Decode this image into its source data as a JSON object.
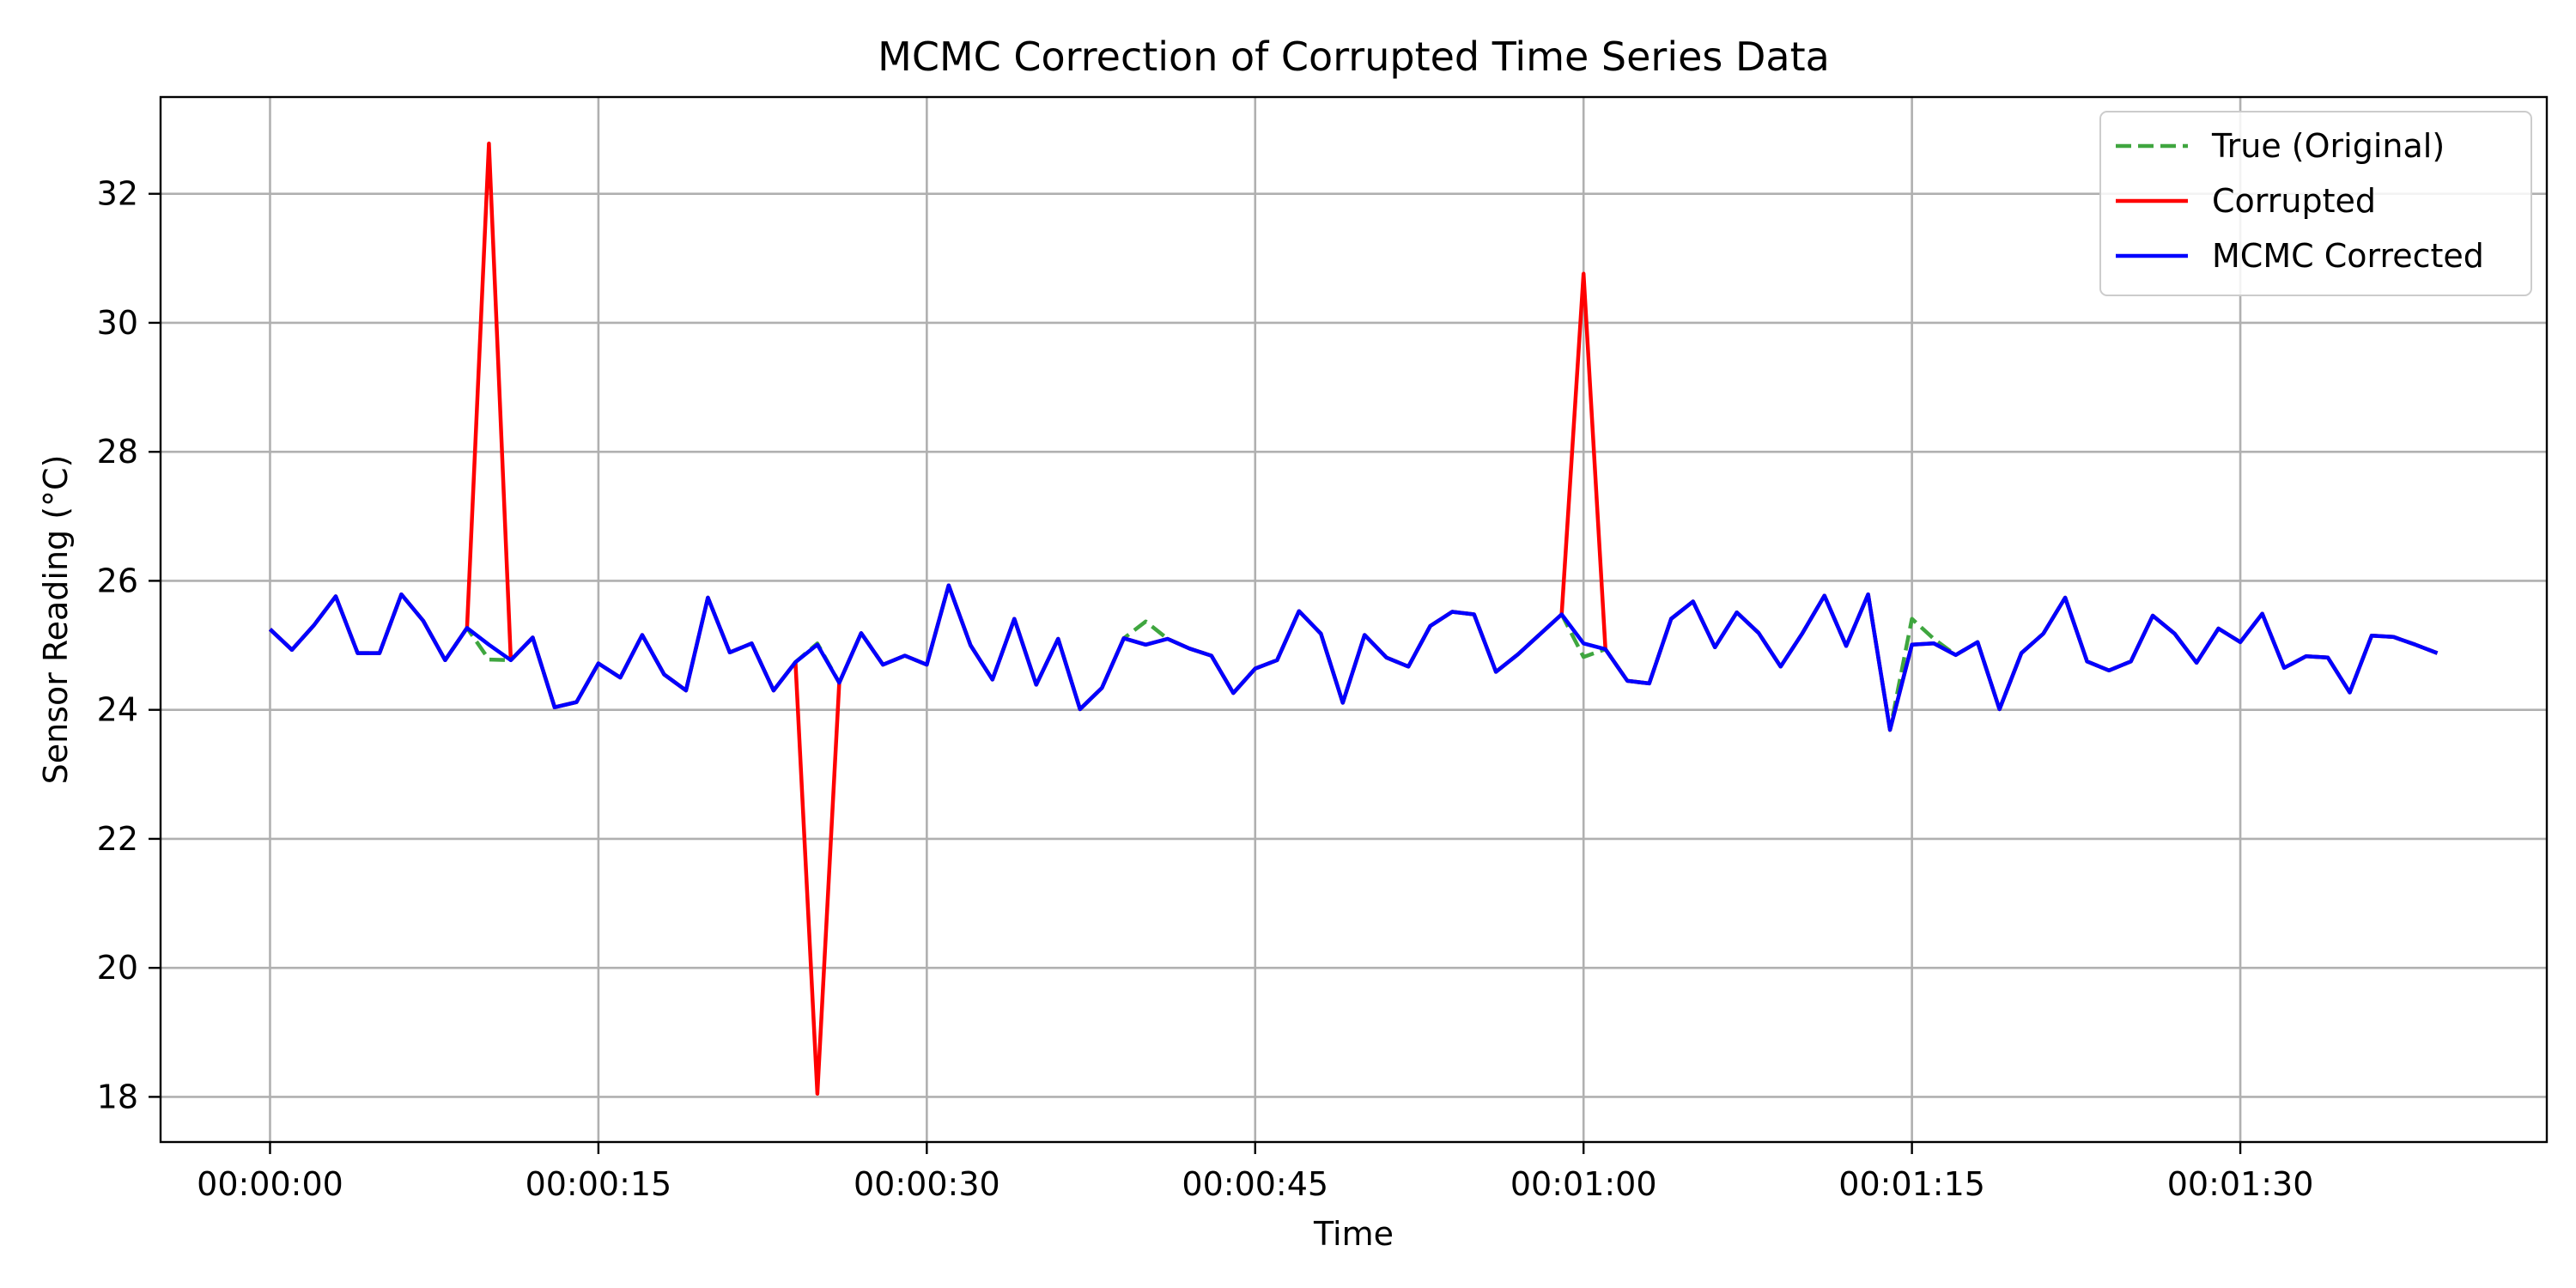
{
  "chart_data": {
    "type": "line",
    "title": "MCMC Correction of Corrupted Time Series Data",
    "xlabel": "Time",
    "ylabel": "Sensor Reading (°C)",
    "x_unit": "seconds",
    "x": [
      0,
      1,
      2,
      3,
      4,
      5,
      6,
      7,
      8,
      9,
      10,
      11,
      12,
      13,
      14,
      15,
      16,
      17,
      18,
      19,
      20,
      21,
      22,
      23,
      24,
      25,
      26,
      27,
      28,
      29,
      30,
      31,
      32,
      33,
      34,
      35,
      36,
      37,
      38,
      39,
      40,
      41,
      42,
      43,
      44,
      45,
      46,
      47,
      48,
      49,
      50,
      51,
      52,
      53,
      54,
      55,
      56,
      57,
      58,
      59,
      60,
      61,
      62,
      63,
      64,
      65,
      66,
      67,
      68,
      69,
      70,
      71,
      72,
      73,
      74,
      75,
      76,
      77,
      78,
      79,
      80,
      81,
      82,
      83,
      84,
      85,
      86,
      87,
      88,
      89,
      90,
      91,
      92,
      93,
      94,
      95,
      96,
      97,
      98,
      99
    ],
    "xticks": [
      0,
      15,
      30,
      45,
      60,
      75,
      90
    ],
    "xtick_labels": [
      "00:00:00",
      "00:00:15",
      "00:00:30",
      "00:00:45",
      "00:01:00",
      "00:01:15",
      "00:01:30"
    ],
    "yticks": [
      18,
      20,
      22,
      24,
      26,
      28,
      30,
      32
    ],
    "ytick_labels": [
      "18",
      "20",
      "22",
      "24",
      "26",
      "28",
      "30",
      "32"
    ],
    "xlim": [
      -5,
      104
    ],
    "ylim": [
      17.3,
      33.5
    ],
    "grid": true,
    "legend_position": "top-right",
    "series": [
      {
        "name": "True (Original)",
        "color": "#3fa63f",
        "style": "dashed",
        "values": [
          25.25,
          24.93,
          25.31,
          25.76,
          24.88,
          24.88,
          25.79,
          25.38,
          24.77,
          25.27,
          24.78,
          24.77,
          25.12,
          24.04,
          24.12,
          24.72,
          24.5,
          25.16,
          24.55,
          24.3,
          25.74,
          24.89,
          25.03,
          24.3,
          24.74,
          25.03,
          24.42,
          25.19,
          24.7,
          24.84,
          24.7,
          25.93,
          25.0,
          24.47,
          25.41,
          24.39,
          25.1,
          24.01,
          24.34,
          25.11,
          25.37,
          25.1,
          24.95,
          24.84,
          24.26,
          24.64,
          24.77,
          25.53,
          25.18,
          24.11,
          25.16,
          24.81,
          24.67,
          25.3,
          25.52,
          25.48,
          24.59,
          24.86,
          25.17,
          25.48,
          24.82,
          24.94,
          24.45,
          24.41,
          25.41,
          25.68,
          24.97,
          25.51,
          25.19,
          24.67,
          25.19,
          25.77,
          24.99,
          25.79,
          23.69,
          25.41,
          25.1,
          24.85,
          25.05,
          24.01,
          24.88,
          25.18,
          25.74,
          24.75,
          24.61,
          24.75,
          25.46,
          25.18,
          24.73,
          25.26,
          25.05,
          25.49,
          24.65,
          24.83,
          24.81,
          24.27,
          25.15,
          25.13,
          25.01,
          24.88
        ]
      },
      {
        "name": "Corrupted",
        "color": "#ff0000",
        "style": "solid",
        "values": [
          25.25,
          24.93,
          25.31,
          25.76,
          24.88,
          24.88,
          25.79,
          25.38,
          24.77,
          25.27,
          32.78,
          24.77,
          25.12,
          24.04,
          24.12,
          24.72,
          24.5,
          25.16,
          24.55,
          24.3,
          25.74,
          24.89,
          25.03,
          24.3,
          24.74,
          18.05,
          24.42,
          25.19,
          24.7,
          24.84,
          24.7,
          25.93,
          25.0,
          24.47,
          25.41,
          24.39,
          25.1,
          24.01,
          24.34,
          25.11,
          25.01,
          25.1,
          24.95,
          24.84,
          24.26,
          24.64,
          24.77,
          25.53,
          25.18,
          24.11,
          25.16,
          24.81,
          24.67,
          25.3,
          25.52,
          25.48,
          24.59,
          24.86,
          25.17,
          25.48,
          30.76,
          24.94,
          24.45,
          24.41,
          25.41,
          25.68,
          24.97,
          25.51,
          25.19,
          24.67,
          25.19,
          25.77,
          24.99,
          25.79,
          23.69,
          25.01,
          25.03,
          24.85,
          25.05,
          24.01,
          24.88,
          25.18,
          25.74,
          24.75,
          24.61,
          24.75,
          25.46,
          25.18,
          24.73,
          25.26,
          25.05,
          25.49,
          24.65,
          24.83,
          24.81,
          24.27,
          25.15,
          25.13,
          25.01,
          24.88
        ]
      },
      {
        "name": "MCMC Corrected",
        "color": "#0000ff",
        "style": "solid",
        "values": [
          25.25,
          24.93,
          25.31,
          25.76,
          24.88,
          24.88,
          25.79,
          25.38,
          24.77,
          25.27,
          25.01,
          24.77,
          25.12,
          24.04,
          24.12,
          24.72,
          24.5,
          25.16,
          24.55,
          24.3,
          25.74,
          24.89,
          25.03,
          24.3,
          24.74,
          25.01,
          24.42,
          25.19,
          24.7,
          24.84,
          24.7,
          25.93,
          25.0,
          24.47,
          25.41,
          24.39,
          25.1,
          24.01,
          24.34,
          25.11,
          25.01,
          25.1,
          24.95,
          24.84,
          24.26,
          24.64,
          24.77,
          25.53,
          25.18,
          24.11,
          25.16,
          24.81,
          24.67,
          25.3,
          25.52,
          25.48,
          24.59,
          24.86,
          25.17,
          25.48,
          25.03,
          24.94,
          24.45,
          24.41,
          25.41,
          25.68,
          24.97,
          25.51,
          25.19,
          24.67,
          25.19,
          25.77,
          24.99,
          25.79,
          23.69,
          25.01,
          25.03,
          24.85,
          25.05,
          24.01,
          24.88,
          25.18,
          25.74,
          24.75,
          24.61,
          24.75,
          25.46,
          25.18,
          24.73,
          25.26,
          25.05,
          25.49,
          24.65,
          24.83,
          24.81,
          24.27,
          25.15,
          25.13,
          25.01,
          24.88
        ]
      }
    ]
  }
}
